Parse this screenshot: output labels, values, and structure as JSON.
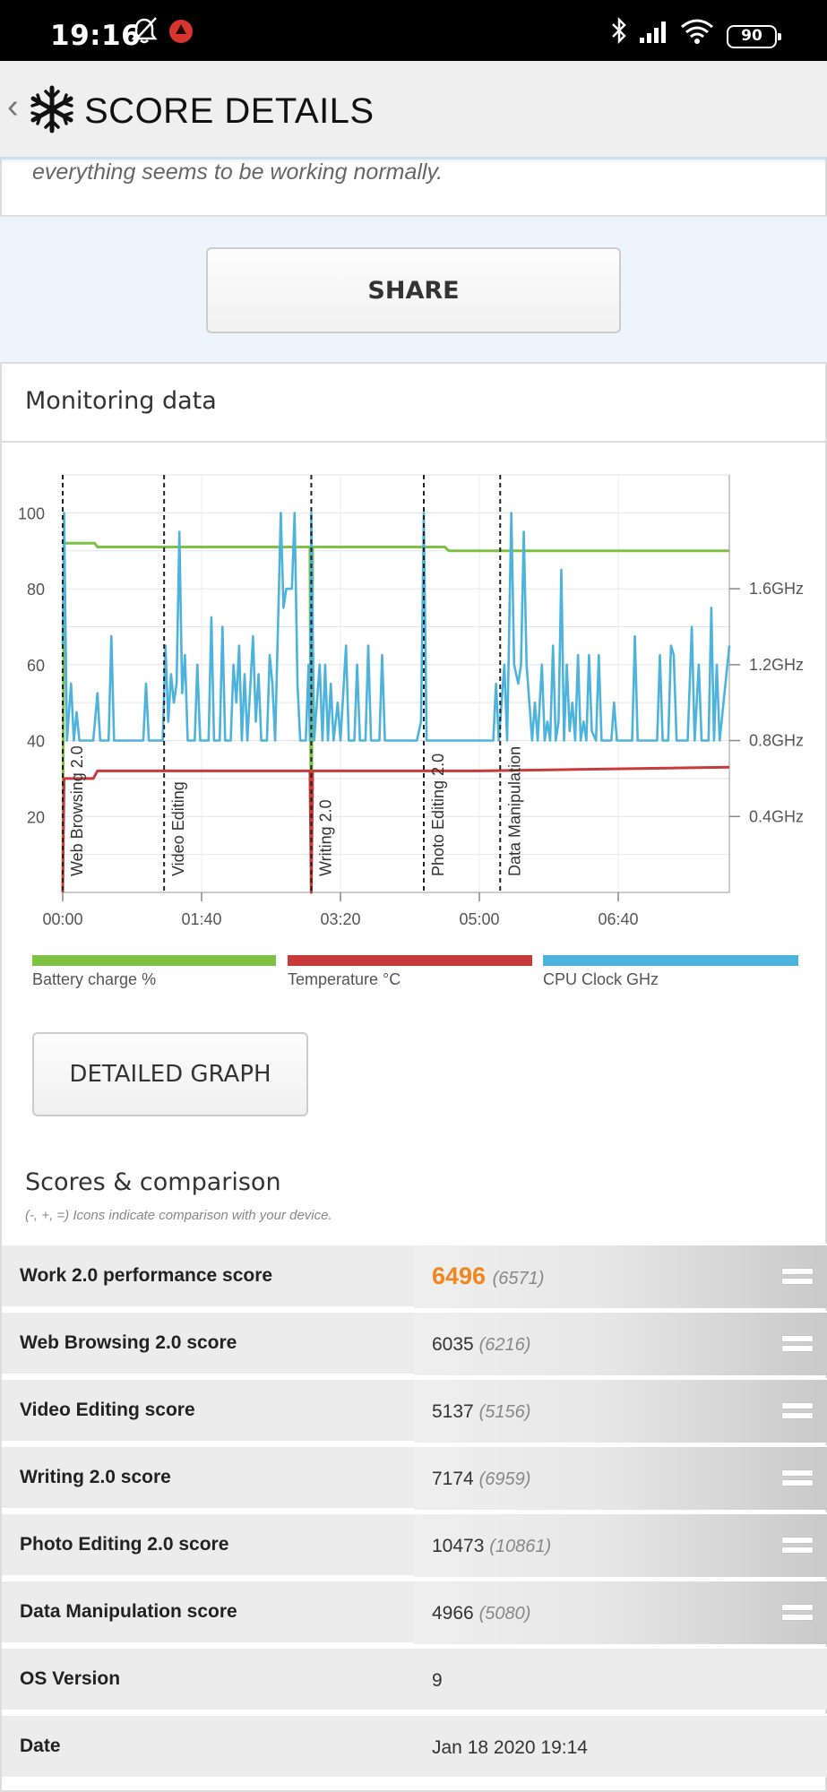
{
  "status_bar": {
    "time": "19:16",
    "battery": "90"
  },
  "header": {
    "title": "SCORE DETAILS"
  },
  "top_card": {
    "text": "everything seems to be working normally."
  },
  "share_button": "SHARE",
  "monitoring": {
    "title": "Monitoring data",
    "detailed_graph_button": "DETAILED GRAPH"
  },
  "chart_data": {
    "type": "line",
    "x_ticks": [
      "00:00",
      "01:40",
      "03:20",
      "05:00",
      "06:40"
    ],
    "x_range_minutes": [
      0,
      480
    ],
    "y_left_ticks": [
      100,
      80,
      60,
      40,
      20
    ],
    "y_left_range": [
      0,
      110
    ],
    "y_right_ticks": [
      "1.6GHz",
      "1.2GHz",
      "0.8GHz",
      "0.4GHz"
    ],
    "y_right_values_ghz": [
      1.6,
      1.2,
      0.8,
      0.4
    ],
    "y_right_range_ghz": [
      0,
      2.2
    ],
    "grid": true,
    "legend_position": "bottom",
    "sections": [
      {
        "label": "Web Browsing 2.0",
        "start_min": 0
      },
      {
        "label": "Video Editing",
        "start_min": 73
      },
      {
        "label": "Writing 2.0",
        "start_min": 179
      },
      {
        "label": "Photo Editing 2.0",
        "start_min": 260
      },
      {
        "label": "Data Manipulation",
        "start_min": 315
      }
    ],
    "series": [
      {
        "name": "Battery charge %",
        "color": "#7dc242",
        "axis": "left",
        "points": [
          [
            0,
            0
          ],
          [
            1,
            92
          ],
          [
            23,
            92
          ],
          [
            25,
            91
          ],
          [
            178,
            91
          ],
          [
            179,
            0
          ],
          [
            180,
            91
          ],
          [
            275,
            91
          ],
          [
            278,
            90
          ],
          [
            480,
            90
          ]
        ]
      },
      {
        "name": "Temperature °C",
        "color": "#c93a3a",
        "axis": "left",
        "points": [
          [
            0,
            0
          ],
          [
            1,
            30
          ],
          [
            22,
            30
          ],
          [
            25,
            32
          ],
          [
            178,
            32
          ],
          [
            179,
            0
          ],
          [
            180,
            32
          ],
          [
            300,
            32
          ],
          [
            480,
            33
          ]
        ]
      },
      {
        "name": "CPU Clock GHz",
        "color": "#4db3dd",
        "axis": "right",
        "points": [
          [
            0,
            1.3
          ],
          [
            1,
            2.0
          ],
          [
            3,
            0.8
          ],
          [
            6,
            1.1
          ],
          [
            8,
            0.8
          ],
          [
            10,
            0.95
          ],
          [
            12,
            0.8
          ],
          [
            22,
            0.8
          ],
          [
            25,
            1.05
          ],
          [
            27,
            0.8
          ],
          [
            33,
            0.8
          ],
          [
            35,
            1.35
          ],
          [
            37,
            0.8
          ],
          [
            58,
            0.8
          ],
          [
            60,
            1.1
          ],
          [
            62,
            0.8
          ],
          [
            72,
            0.8
          ],
          [
            74,
            1.3
          ],
          [
            76,
            0.9
          ],
          [
            78,
            1.15
          ],
          [
            80,
            1.0
          ],
          [
            82,
            1.1
          ],
          [
            84,
            1.9
          ],
          [
            86,
            1.05
          ],
          [
            88,
            1.25
          ],
          [
            90,
            0.8
          ],
          [
            95,
            0.8
          ],
          [
            97,
            1.2
          ],
          [
            99,
            0.8
          ],
          [
            105,
            0.8
          ],
          [
            107,
            1.45
          ],
          [
            109,
            0.8
          ],
          [
            113,
            0.8
          ],
          [
            115,
            1.4
          ],
          [
            117,
            0.8
          ],
          [
            121,
            0.8
          ],
          [
            123,
            1.2
          ],
          [
            125,
            1.0
          ],
          [
            127,
            1.3
          ],
          [
            129,
            0.8
          ],
          [
            131,
            1.15
          ],
          [
            133,
            0.8
          ],
          [
            137,
            1.35
          ],
          [
            139,
            0.9
          ],
          [
            141,
            1.15
          ],
          [
            143,
            0.8
          ],
          [
            147,
            0.8
          ],
          [
            149,
            1.25
          ],
          [
            151,
            1.1
          ],
          [
            153,
            0.8
          ],
          [
            157,
            2.0
          ],
          [
            159,
            1.5
          ],
          [
            161,
            1.6
          ],
          [
            163,
            1.6
          ],
          [
            165,
            1.6
          ],
          [
            167,
            2.0
          ],
          [
            169,
            1.1
          ],
          [
            171,
            0.8
          ],
          [
            175,
            0.8
          ],
          [
            177,
            1.2
          ],
          [
            178,
            0.8
          ],
          [
            179,
            2.0
          ],
          [
            181,
            0.8
          ],
          [
            185,
            1.2
          ],
          [
            187,
            0.8
          ],
          [
            189,
            1.2
          ],
          [
            191,
            0.8
          ],
          [
            193,
            1.1
          ],
          [
            195,
            0.8
          ],
          [
            198,
            1.0
          ],
          [
            200,
            0.8
          ],
          [
            204,
            1.3
          ],
          [
            206,
            0.8
          ],
          [
            210,
            0.8
          ],
          [
            212,
            1.2
          ],
          [
            214,
            0.8
          ],
          [
            218,
            0.8
          ],
          [
            220,
            1.3
          ],
          [
            222,
            0.8
          ],
          [
            228,
            0.8
          ],
          [
            230,
            1.25
          ],
          [
            232,
            0.8
          ],
          [
            255,
            0.8
          ],
          [
            258,
            0.9
          ],
          [
            260,
            2.0
          ],
          [
            262,
            0.8
          ],
          [
            310,
            0.8
          ],
          [
            312,
            1.1
          ],
          [
            314,
            0.8
          ],
          [
            316,
            1.0
          ],
          [
            318,
            1.2
          ],
          [
            320,
            0.8
          ],
          [
            323,
            2.0
          ],
          [
            325,
            1.2
          ],
          [
            328,
            1.1
          ],
          [
            330,
            1.2
          ],
          [
            332,
            1.9
          ],
          [
            334,
            1.2
          ],
          [
            336,
            1.0
          ],
          [
            338,
            0.8
          ],
          [
            340,
            1.0
          ],
          [
            342,
            0.8
          ],
          [
            345,
            1.2
          ],
          [
            347,
            0.8
          ],
          [
            349,
            0.9
          ],
          [
            351,
            0.8
          ],
          [
            353,
            1.3
          ],
          [
            355,
            0.8
          ],
          [
            357,
            0.9
          ],
          [
            359,
            1.7
          ],
          [
            361,
            0.8
          ],
          [
            363,
            1.2
          ],
          [
            365,
            0.85
          ],
          [
            367,
            1.0
          ],
          [
            369,
            0.8
          ],
          [
            371,
            1.25
          ],
          [
            373,
            0.8
          ],
          [
            375,
            0.9
          ],
          [
            377,
            0.8
          ],
          [
            379,
            1.25
          ],
          [
            381,
            0.85
          ],
          [
            384,
            0.8
          ],
          [
            386,
            1.25
          ],
          [
            388,
            0.8
          ],
          [
            395,
            0.8
          ],
          [
            397,
            1.0
          ],
          [
            399,
            0.8
          ],
          [
            410,
            0.8
          ],
          [
            412,
            1.35
          ],
          [
            414,
            0.8
          ],
          [
            428,
            0.8
          ],
          [
            430,
            1.25
          ],
          [
            432,
            0.8
          ],
          [
            436,
            0.8
          ],
          [
            438,
            1.3
          ],
          [
            440,
            1.25
          ],
          [
            442,
            0.8
          ],
          [
            450,
            0.8
          ],
          [
            453,
            1.4
          ],
          [
            455,
            0.8
          ],
          [
            458,
            1.2
          ],
          [
            460,
            0.8
          ],
          [
            465,
            0.8
          ],
          [
            467,
            1.5
          ],
          [
            469,
            0.8
          ],
          [
            471,
            1.2
          ],
          [
            473,
            0.8
          ],
          [
            480,
            1.3
          ]
        ]
      }
    ]
  },
  "scores": {
    "title": "Scores & comparison",
    "subtitle": "(-, +, =) Icons indicate comparison with your device.",
    "rows": [
      {
        "label": "Work 2.0 performance score",
        "value": "6496",
        "compare": "(6571)",
        "icon": "equal-icon"
      },
      {
        "label": "Web Browsing 2.0 score",
        "value": "6035",
        "compare": "(6216)",
        "icon": "equal-icon"
      },
      {
        "label": "Video Editing score",
        "value": "5137",
        "compare": "(5156)",
        "icon": "equal-icon"
      },
      {
        "label": "Writing 2.0 score",
        "value": "7174",
        "compare": "(6959)",
        "icon": "equal-icon"
      },
      {
        "label": "Photo Editing 2.0 score",
        "value": "10473",
        "compare": "(10861)",
        "icon": "equal-icon"
      },
      {
        "label": "Data Manipulation score",
        "value": "4966",
        "compare": "(5080)",
        "icon": "equal-icon"
      },
      {
        "label": "OS Version",
        "value": "9"
      },
      {
        "label": "Date",
        "value": "Jan 18 2020 19:14"
      }
    ]
  },
  "colors": {
    "accent_score": "#f0861e",
    "battery": "#7dc242",
    "temperature": "#c93a3a",
    "cpu": "#4db3dd"
  }
}
